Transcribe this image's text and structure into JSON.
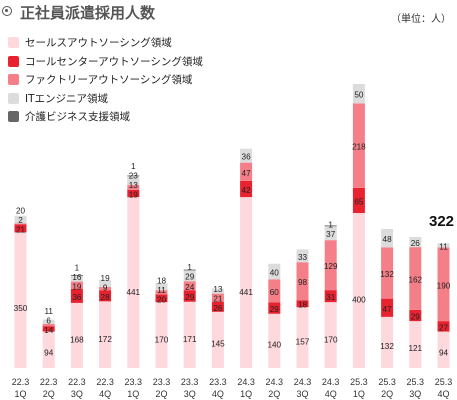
{
  "title": "正社員派遣採用人数",
  "unit_label": "（単位：人）",
  "legend": [
    {
      "label": "セールスアウトソーシング領域",
      "color": "#fdd8dc"
    },
    {
      "label": "コールセンターアウトソーシング領域",
      "color": "#e8232f"
    },
    {
      "label": "ファクトリーアウトソーシング領域",
      "color": "#f47f88"
    },
    {
      "label": "ITエンジニア領域",
      "color": "#dcdcdc"
    },
    {
      "label": "介護ビジネス支援領域",
      "color": "#666666"
    }
  ],
  "chart_data": {
    "type": "bar",
    "stacked": true,
    "categories": [
      "22.3 1Q",
      "22.3 2Q",
      "22.3 3Q",
      "22.3 4Q",
      "23.3 1Q",
      "23.3 2Q",
      "23.3 3Q",
      "23.3 4Q",
      "24.3 1Q",
      "24.3 2Q",
      "24.3 3Q",
      "24.3 4Q",
      "25.3 1Q",
      "25.3 2Q",
      "25.3 3Q",
      "25.3 4Q"
    ],
    "tick_labels": [
      [
        "22.3",
        "1Q"
      ],
      [
        "22.3",
        "2Q"
      ],
      [
        "22.3",
        "3Q"
      ],
      [
        "22.3",
        "4Q"
      ],
      [
        "23.3",
        "1Q"
      ],
      [
        "23.3",
        "2Q"
      ],
      [
        "23.3",
        "3Q"
      ],
      [
        "23.3",
        "4Q"
      ],
      [
        "24.3",
        "1Q"
      ],
      [
        "24.3",
        "2Q"
      ],
      [
        "24.3",
        "3Q"
      ],
      [
        "24.3",
        "4Q"
      ],
      [
        "25.3",
        "1Q"
      ],
      [
        "25.3",
        "2Q"
      ],
      [
        "25.3",
        "3Q"
      ],
      [
        "25.3",
        "4Q"
      ]
    ],
    "series": [
      {
        "name": "セールスアウトソーシング領域",
        "color": "#fdd8dc",
        "values": [
          350,
          94,
          168,
          172,
          441,
          170,
          171,
          145,
          441,
          140,
          157,
          170,
          400,
          132,
          121,
          94
        ]
      },
      {
        "name": "コールセンターアウトソーシング領域",
        "color": "#e8232f",
        "values": [
          21,
          14,
          36,
          28,
          19,
          20,
          29,
          26,
          42,
          29,
          18,
          31,
          65,
          47,
          29,
          27
        ]
      },
      {
        "name": "ファクトリーアウトソーシング領域",
        "color": "#f47f88",
        "values": [
          2,
          6,
          19,
          9,
          13,
          11,
          24,
          21,
          47,
          60,
          98,
          129,
          218,
          132,
          162,
          190
        ]
      },
      {
        "name": "ITエンジニア領域",
        "color": "#dcdcdc",
        "values": [
          20,
          11,
          16,
          19,
          23,
          18,
          29,
          13,
          36,
          40,
          33,
          37,
          50,
          48,
          26,
          11
        ]
      },
      {
        "name": "介護ビジネス支援領域",
        "color": "#666666",
        "values": [
          0,
          0,
          1,
          0,
          1,
          0,
          1,
          0,
          0,
          0,
          0,
          1,
          0,
          0,
          0,
          0
        ]
      }
    ],
    "labels": [
      [
        "350",
        "21",
        "2",
        "20",
        ""
      ],
      [
        "94",
        "14",
        "6",
        "11",
        ""
      ],
      [
        "168",
        "36",
        "19",
        "16",
        "1"
      ],
      [
        "172",
        "28",
        "9",
        "19",
        ""
      ],
      [
        "441",
        "19",
        "13",
        "23",
        "1"
      ],
      [
        "170",
        "20",
        "11",
        "18",
        ""
      ],
      [
        "171",
        "29",
        "24",
        "29",
        "1"
      ],
      [
        "145",
        "26",
        "21",
        "13",
        ""
      ],
      [
        "441",
        "42",
        "47",
        "36",
        ""
      ],
      [
        "140",
        "29",
        "60",
        "40",
        ""
      ],
      [
        "157",
        "18",
        "98",
        "33",
        ""
      ],
      [
        "170",
        "31",
        "129",
        "37",
        "1"
      ],
      [
        "400",
        "65",
        "218",
        "50",
        ""
      ],
      [
        "132",
        "47",
        "132",
        "48",
        ""
      ],
      [
        "121",
        "29",
        "162",
        "26",
        ""
      ],
      [
        "94",
        "27",
        "190",
        "11",
        ""
      ]
    ],
    "total_callout": {
      "index": 15,
      "text": "322"
    },
    "ylim": [
      0,
      733
    ]
  }
}
